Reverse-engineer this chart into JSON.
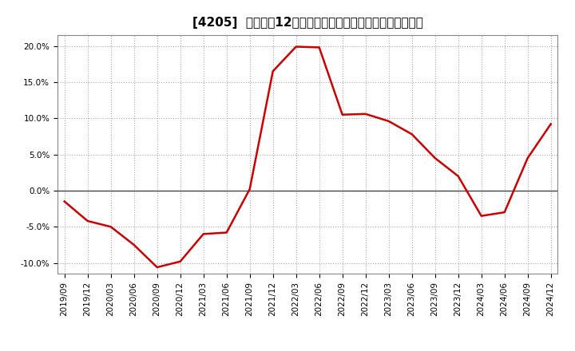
{
  "title": "[4205]  売上高の12か月移動合計の対前年同期増減率の推移",
  "line_color": "#cc0000",
  "background_color": "#ffffff",
  "plot_bg_color": "#ffffff",
  "grid_color": "#aaaaaa",
  "zero_line_color": "#444444",
  "x_labels": [
    "2019/09",
    "2019/12",
    "2020/03",
    "2020/06",
    "2020/09",
    "2020/12",
    "2021/03",
    "2021/06",
    "2021/09",
    "2021/12",
    "2022/03",
    "2022/06",
    "2022/09",
    "2022/12",
    "2023/03",
    "2023/06",
    "2023/09",
    "2023/12",
    "2024/03",
    "2024/06",
    "2024/09",
    "2024/12"
  ],
  "y_values": [
    -1.5,
    -4.2,
    -5.0,
    -7.5,
    -10.6,
    -9.8,
    -6.0,
    -5.8,
    0.2,
    16.5,
    19.9,
    19.8,
    10.5,
    10.6,
    9.6,
    7.8,
    4.5,
    2.0,
    -3.5,
    -3.0,
    4.5,
    9.2
  ],
  "ylim": [
    -11.5,
    21.5
  ],
  "yticks": [
    -10.0,
    -5.0,
    0.0,
    5.0,
    10.0,
    15.0,
    20.0
  ],
  "title_fontsize": 11,
  "tick_fontsize": 7.5
}
